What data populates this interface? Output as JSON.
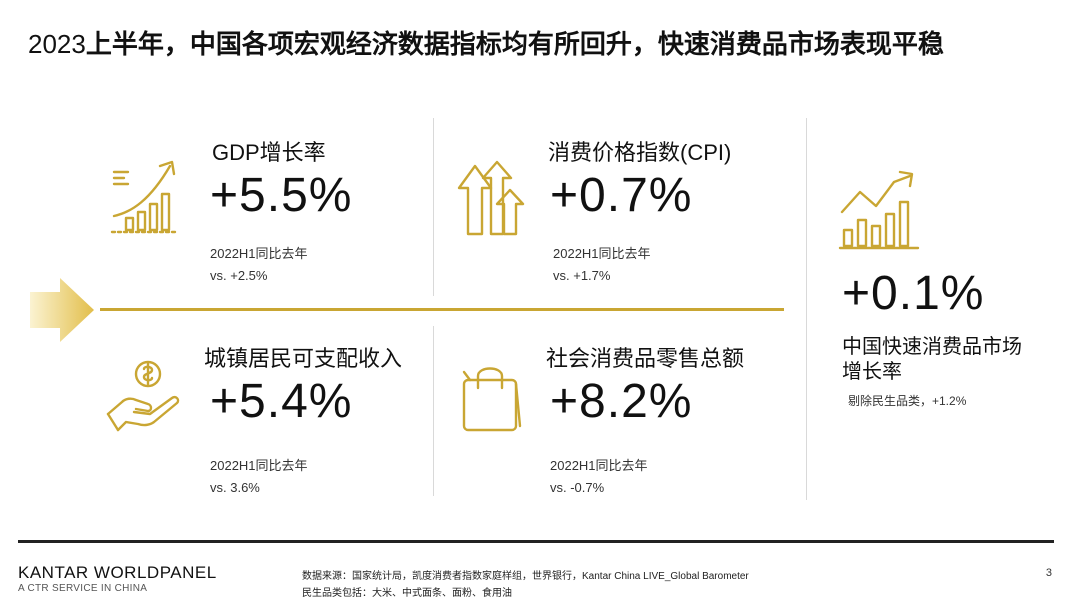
{
  "title": {
    "year": "2023",
    "rest": "上半年，中国各项宏观经济数据指标均有所回升，快速消费品市场表现平稳"
  },
  "metrics": {
    "gdp": {
      "label": "GDP增长率",
      "value": "+5.5%",
      "sub1": "2022H1同比去年",
      "sub2": "vs. +2.5%",
      "icon": "growth-chart-icon"
    },
    "cpi": {
      "label": "消费价格指数(CPI)",
      "value": "+0.7%",
      "sub1": "2022H1同比去年",
      "sub2": "vs. +1.7%",
      "icon": "up-arrows-icon"
    },
    "income": {
      "label": "城镇居民可支配收入",
      "value": "+5.4%",
      "sub1": "2022H1同比去年",
      "sub2": "vs. 3.6%",
      "icon": "hand-coin-icon"
    },
    "retail": {
      "label": "社会消费品零售总额",
      "value": "+8.2%",
      "sub1": "2022H1同比去年",
      "sub2": "vs. -0.7%",
      "icon": "shopping-bag-icon"
    },
    "fmcg": {
      "value": "+0.1%",
      "label_line1": "中国快速消费品市场",
      "label_line2": "增长率",
      "note": "剔除民生品类，+1.2%",
      "icon": "market-growth-icon"
    }
  },
  "footer": {
    "brand": "KANTAR WORLDPANEL",
    "brand_sub": "A CTR SERVICE IN CHINA",
    "source": "数据来源：国家统计局，凯度消费者指数家庭样组，世界银行，Kantar China LIVE_Global Barometer",
    "note": "民生品类包括：大米、中式面条、面粉、食用油",
    "page": "3"
  },
  "colors": {
    "accent": "#c9a633",
    "text": "#111111",
    "divider": "#d9d9d9"
  }
}
